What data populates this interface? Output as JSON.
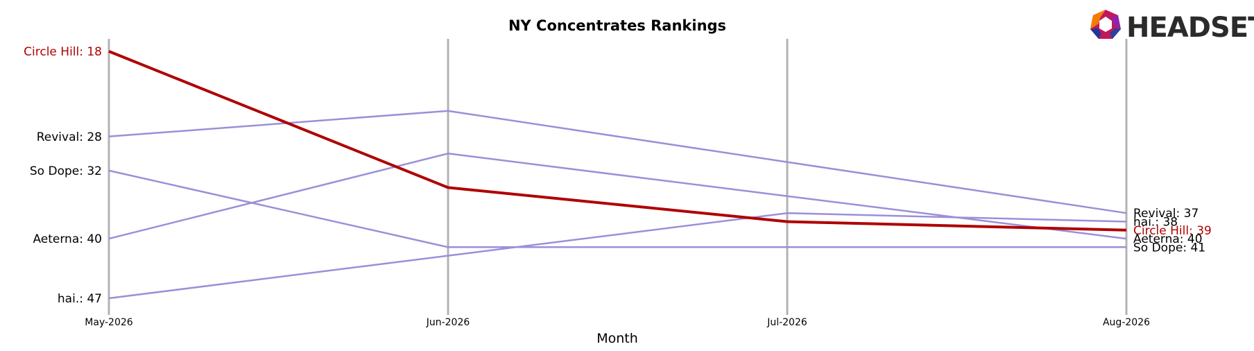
{
  "chart_data": {
    "type": "line",
    "title": "NY Concentrates Rankings",
    "xlabel": "Month",
    "ylabel": "",
    "x": [
      "May-2026",
      "Jun-2026",
      "Jul-2026",
      "Aug-2026"
    ],
    "y_inverted": true,
    "ylim": [
      48,
      17
    ],
    "grid": false,
    "series": [
      {
        "name": "Circle Hill",
        "values": [
          18,
          34,
          38,
          39
        ],
        "color": "#b00000",
        "highlight": true
      },
      {
        "name": "Revival",
        "values": [
          28,
          25,
          31,
          37
        ],
        "color": "#9b8fd9",
        "highlight": false
      },
      {
        "name": "So Dope",
        "values": [
          32,
          41,
          41,
          41
        ],
        "color": "#9b8fd9",
        "highlight": false
      },
      {
        "name": "Aeterna",
        "values": [
          40,
          30,
          35,
          40
        ],
        "color": "#9b8fd9",
        "highlight": false
      },
      {
        "name": "hai.",
        "values": [
          47,
          42,
          37,
          38
        ],
        "color": "#9b8fd9",
        "highlight": false
      }
    ]
  },
  "logo": {
    "text": "HEADSET"
  },
  "colors": {
    "highlight": "#b00000",
    "others": "#9b8fd9",
    "vline": "#b3b3b3"
  }
}
